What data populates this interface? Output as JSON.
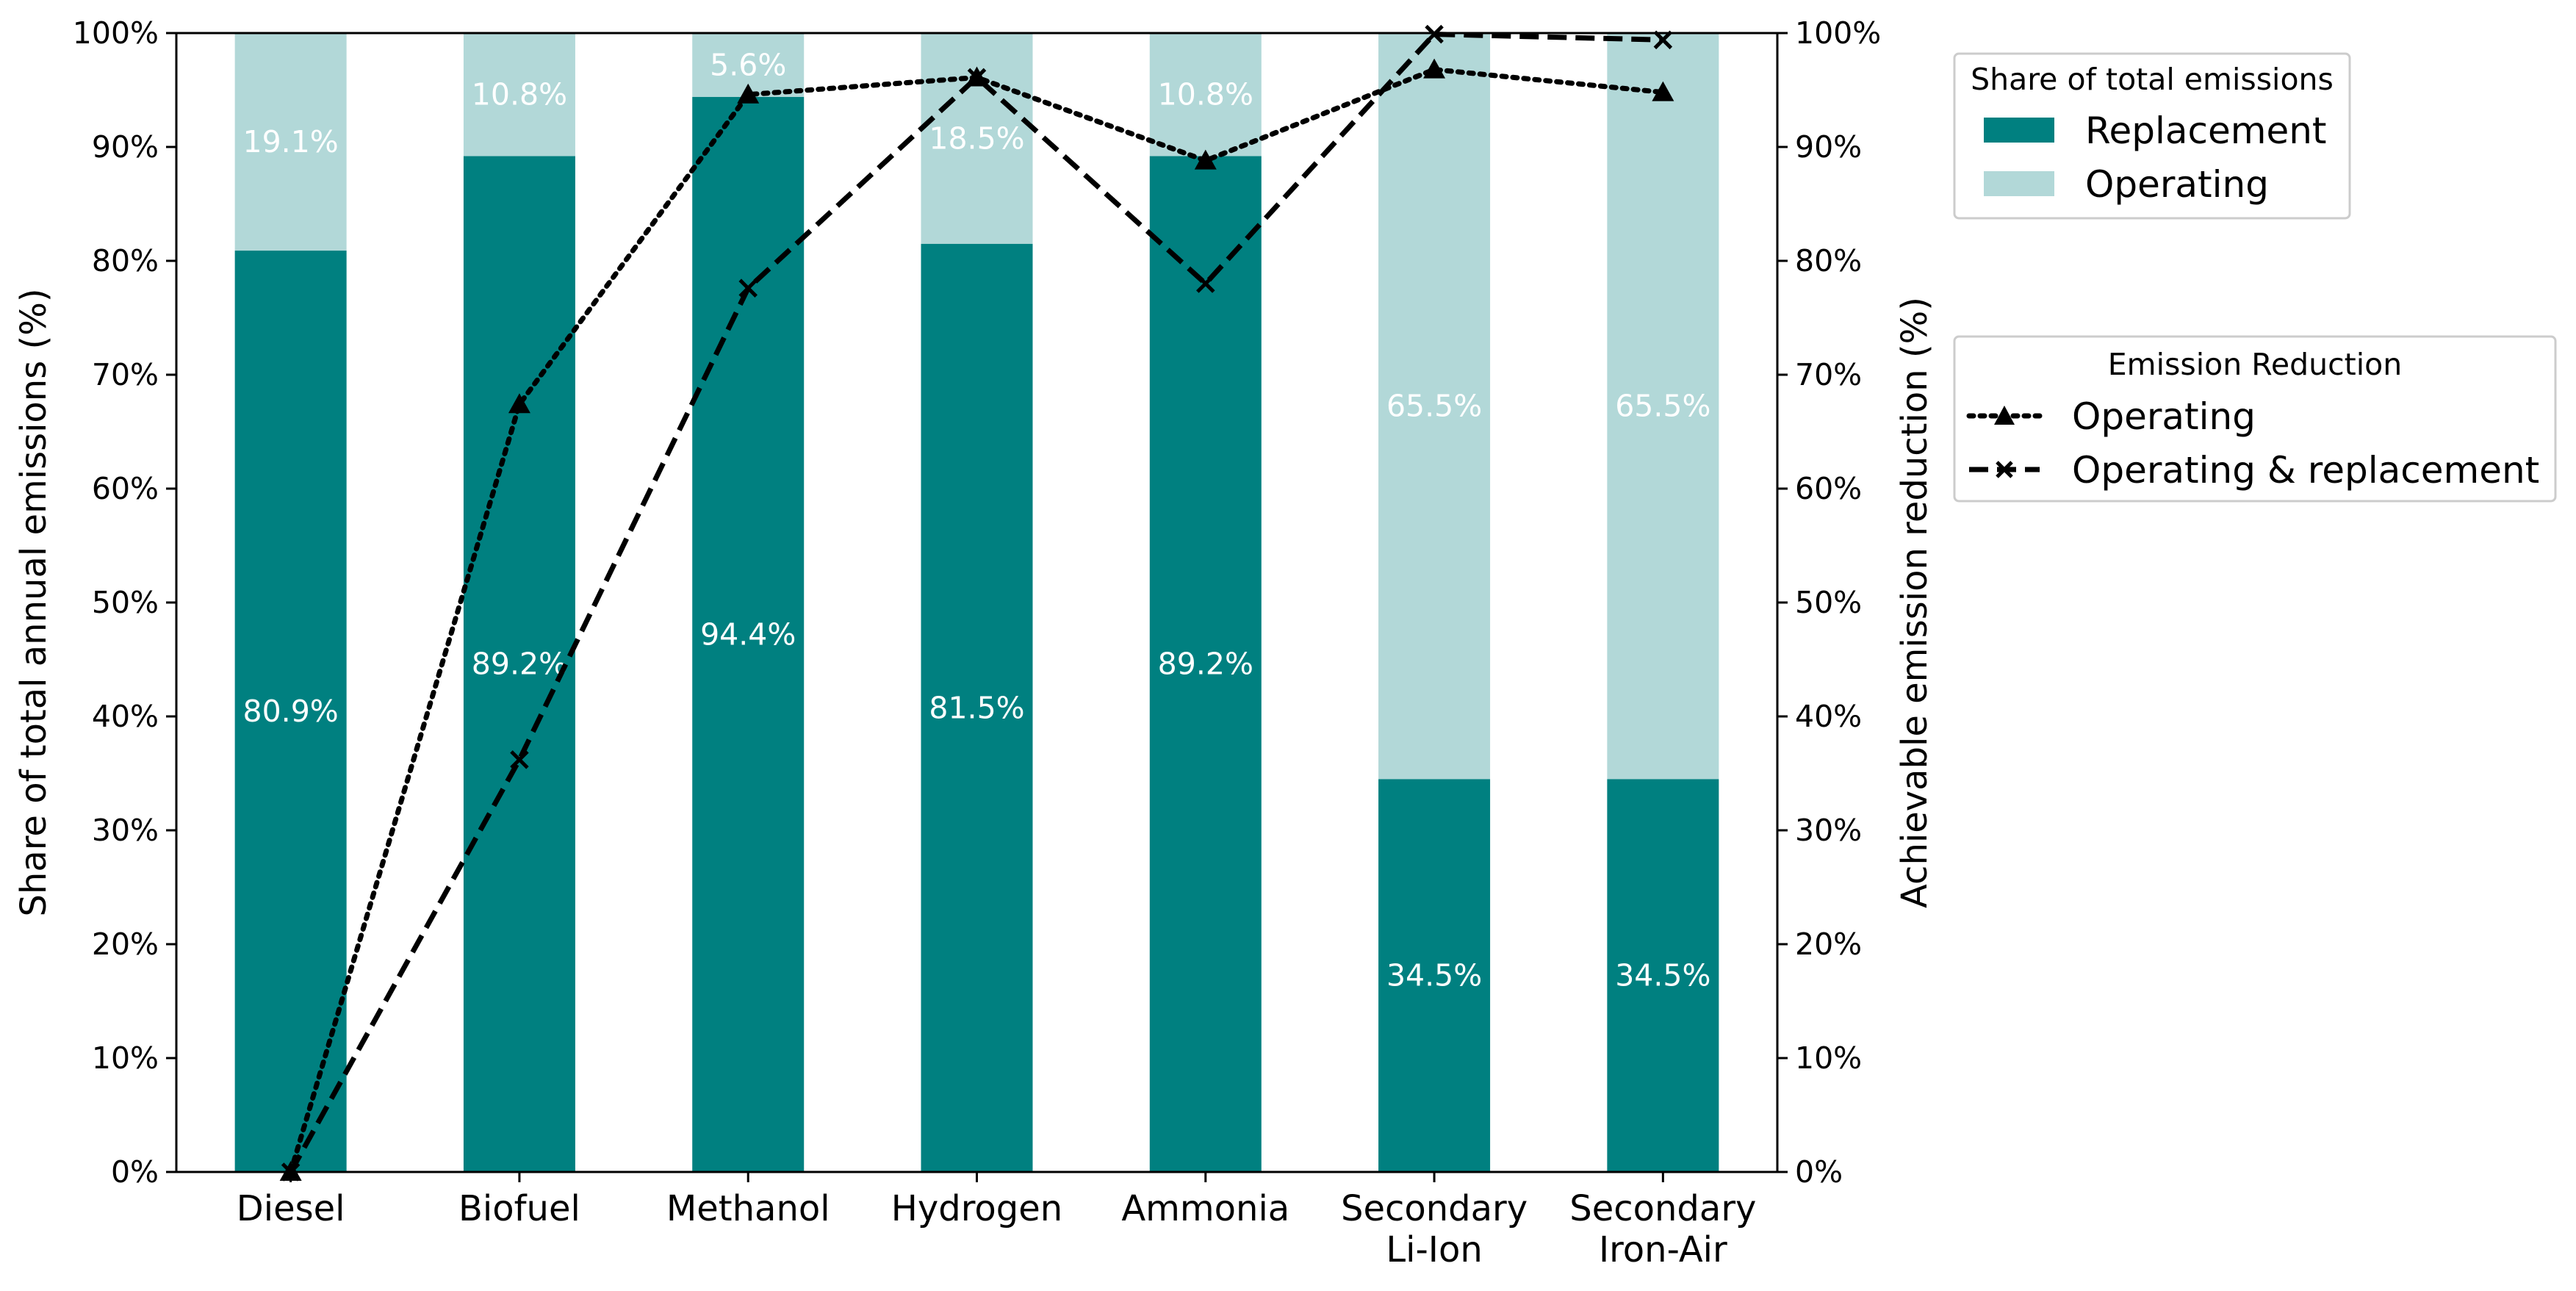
{
  "chart_data": {
    "type": "bar",
    "stacked": true,
    "categories": [
      [
        "Diesel"
      ],
      [
        "Biofuel"
      ],
      [
        "Methanol"
      ],
      [
        "Hydrogen"
      ],
      [
        "Ammonia"
      ],
      [
        "Secondary",
        "Li-Ion"
      ],
      [
        "Secondary",
        "Iron-Air"
      ]
    ],
    "series": [
      {
        "name": "Replacement",
        "color": "#008080",
        "values": [
          80.9,
          89.2,
          94.4,
          81.5,
          89.2,
          34.5,
          34.5
        ],
        "labels": [
          "80.9%",
          "89.2%",
          "94.4%",
          "81.5%",
          "89.2%",
          "34.5%",
          "34.5%"
        ]
      },
      {
        "name": "Operating",
        "color": "#b2d8d8",
        "values": [
          19.1,
          10.8,
          5.6,
          18.5,
          10.8,
          65.5,
          65.5
        ],
        "labels": [
          "19.1%",
          "10.8%",
          "5.6%",
          "18.5%",
          "10.8%",
          "65.5%",
          "65.5%"
        ]
      }
    ],
    "lines": [
      {
        "name": "Operating",
        "style": "dotted",
        "marker": "triangle",
        "axis": "right",
        "values": [
          0,
          67.4,
          94.6,
          96.1,
          88.8,
          96.8,
          94.8
        ]
      },
      {
        "name": "Operating & replacement",
        "style": "dashed",
        "marker": "x",
        "axis": "right",
        "values": [
          0,
          36.2,
          77.6,
          96.1,
          78.0,
          99.9,
          99.4
        ]
      }
    ],
    "ylabel": "Share of total annual emissions (%)",
    "y2label": "Achievable emission reduction (%)",
    "ylim": [
      0,
      100
    ],
    "y2lim": [
      0,
      100
    ],
    "yticks": [
      "0%",
      "10%",
      "20%",
      "30%",
      "40%",
      "50%",
      "60%",
      "70%",
      "80%",
      "90%",
      "100%"
    ],
    "legend_bars_title": "Share of total emissions",
    "legend_lines_title": "Emission Reduction",
    "legend_position": "outside-right",
    "grid": false
  }
}
